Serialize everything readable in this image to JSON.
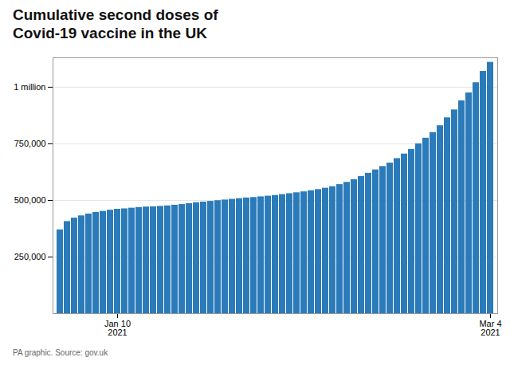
{
  "chart_data": {
    "type": "bar",
    "title": "Cumulative second doses of\nCovid-19 vaccine in the UK",
    "caption": "PA graphic. Source: gov.uk",
    "color": "#2b7bba",
    "categories": [
      null,
      null,
      null,
      null,
      null,
      null,
      null,
      null,
      "Jan 10\n2021",
      null,
      null,
      null,
      null,
      null,
      null,
      null,
      null,
      null,
      null,
      null,
      null,
      null,
      null,
      null,
      null,
      null,
      null,
      null,
      null,
      null,
      null,
      null,
      null,
      null,
      null,
      null,
      null,
      null,
      null,
      null,
      null,
      null,
      null,
      null,
      null,
      null,
      null,
      null,
      null,
      null,
      null,
      null,
      null,
      null,
      null,
      null,
      null,
      null,
      null,
      null,
      "Mar 4\n2021"
    ],
    "values": [
      370000,
      407000,
      422000,
      432000,
      440000,
      447000,
      452000,
      457000,
      461000,
      463000,
      466000,
      469000,
      471000,
      472000,
      474000,
      476000,
      479000,
      482000,
      486000,
      490000,
      493000,
      496000,
      499000,
      502000,
      505000,
      508000,
      511000,
      513000,
      516000,
      519000,
      522000,
      526000,
      530000,
      534000,
      538000,
      543000,
      548000,
      554000,
      561000,
      570000,
      580000,
      592000,
      606000,
      620000,
      635000,
      650000,
      665000,
      685000,
      705000,
      725000,
      750000,
      775000,
      800000,
      830000,
      865000,
      900000,
      940000,
      975000,
      1020000,
      1070000,
      1110000
    ],
    "ylim": [
      0,
      1130000
    ],
    "yticks": [
      {
        "value": 250000,
        "label": "250,000"
      },
      {
        "value": 500000,
        "label": "500,000"
      },
      {
        "value": 750000,
        "label": "750,000"
      },
      {
        "value": 1000000,
        "label": "1 million"
      }
    ],
    "grid": true
  }
}
